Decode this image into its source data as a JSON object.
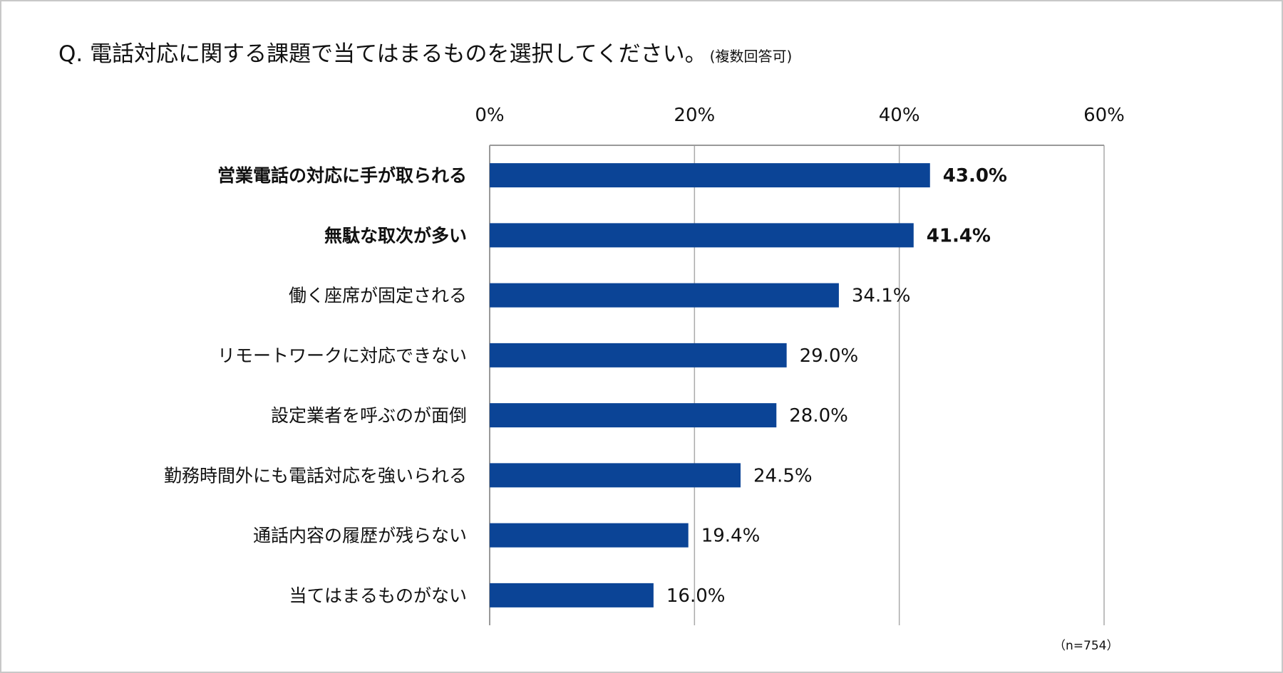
{
  "title": "Q. 電話対応に関する課題で当てはまるものを選択してください。",
  "title_note": "(複数回答可)",
  "sample_note": "（n=754）",
  "chart_data": {
    "type": "bar",
    "orientation": "horizontal",
    "categories": [
      "営業電話の対応に手が取られる",
      "無駄な取次が多い",
      "働く座席が固定される",
      "リモートワークに対応できない",
      "設定業者を呼ぶのが面倒",
      "勤務時間外にも電話対応を強いられる",
      "通話内容の履歴が残らない",
      "当てはまるものがない"
    ],
    "values": [
      43.0,
      41.4,
      34.1,
      29.0,
      28.0,
      24.5,
      19.4,
      16.0
    ],
    "data_labels": [
      "43.0%",
      "41.4%",
      "34.1%",
      "29.0%",
      "28.0%",
      "24.5%",
      "19.4%",
      "16.0%"
    ],
    "bold_categories": [
      0,
      1
    ],
    "xlim": [
      0,
      60
    ],
    "x_ticks": [
      "0%",
      "20%",
      "40%",
      "60%"
    ],
    "x_tick_values": [
      0,
      20,
      40,
      60
    ],
    "x_axis_position": "top",
    "grid": true,
    "bar_color": "#0b4496"
  }
}
